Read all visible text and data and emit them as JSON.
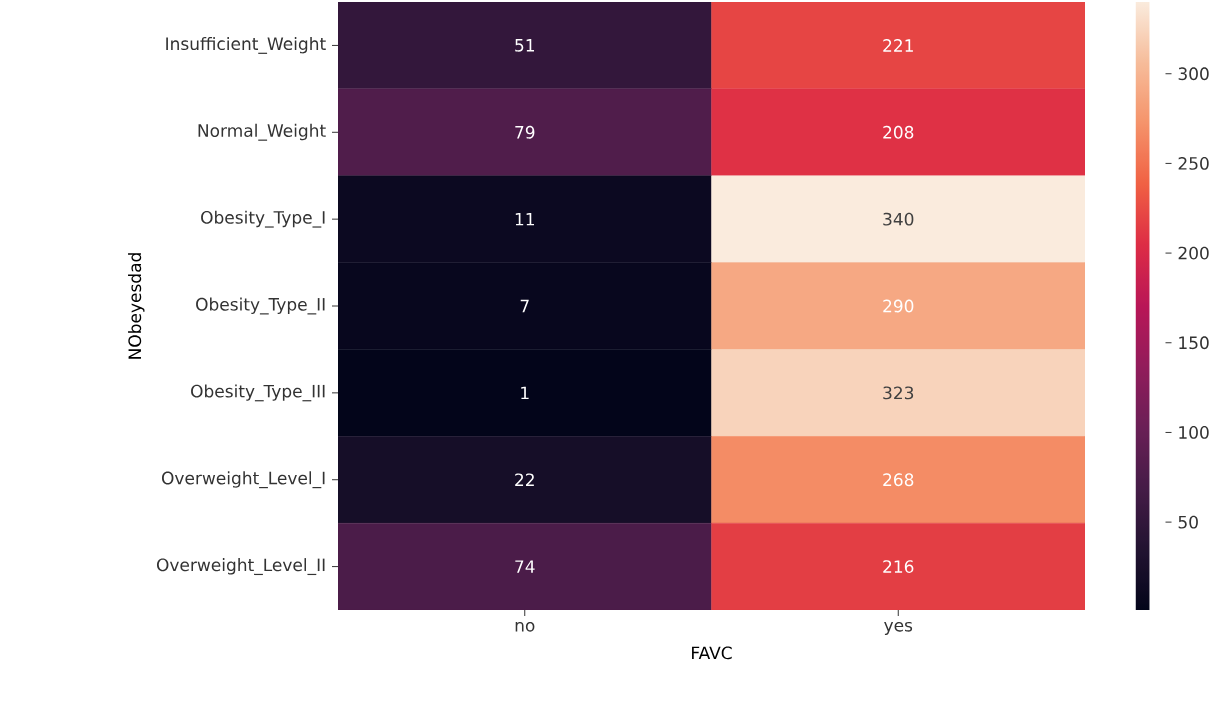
{
  "chart_data": {
    "type": "heatmap",
    "xlabel": "FAVC",
    "ylabel": "NObeyesdad",
    "categories": [
      "no",
      "yes"
    ],
    "y_categories": [
      "Insufficient_Weight",
      "Normal_Weight",
      "Obesity_Type_I",
      "Obesity_Type_II",
      "Obesity_Type_III",
      "Overweight_Level_I",
      "Overweight_Level_II"
    ],
    "cells": [
      [
        51,
        221
      ],
      [
        79,
        208
      ],
      [
        11,
        340
      ],
      [
        7,
        290
      ],
      [
        1,
        323
      ],
      [
        22,
        268
      ],
      [
        74,
        216
      ]
    ],
    "data_labels": true,
    "clim": [
      1,
      340
    ],
    "cticks": [
      50,
      100,
      150,
      200,
      250,
      300
    ]
  }
}
